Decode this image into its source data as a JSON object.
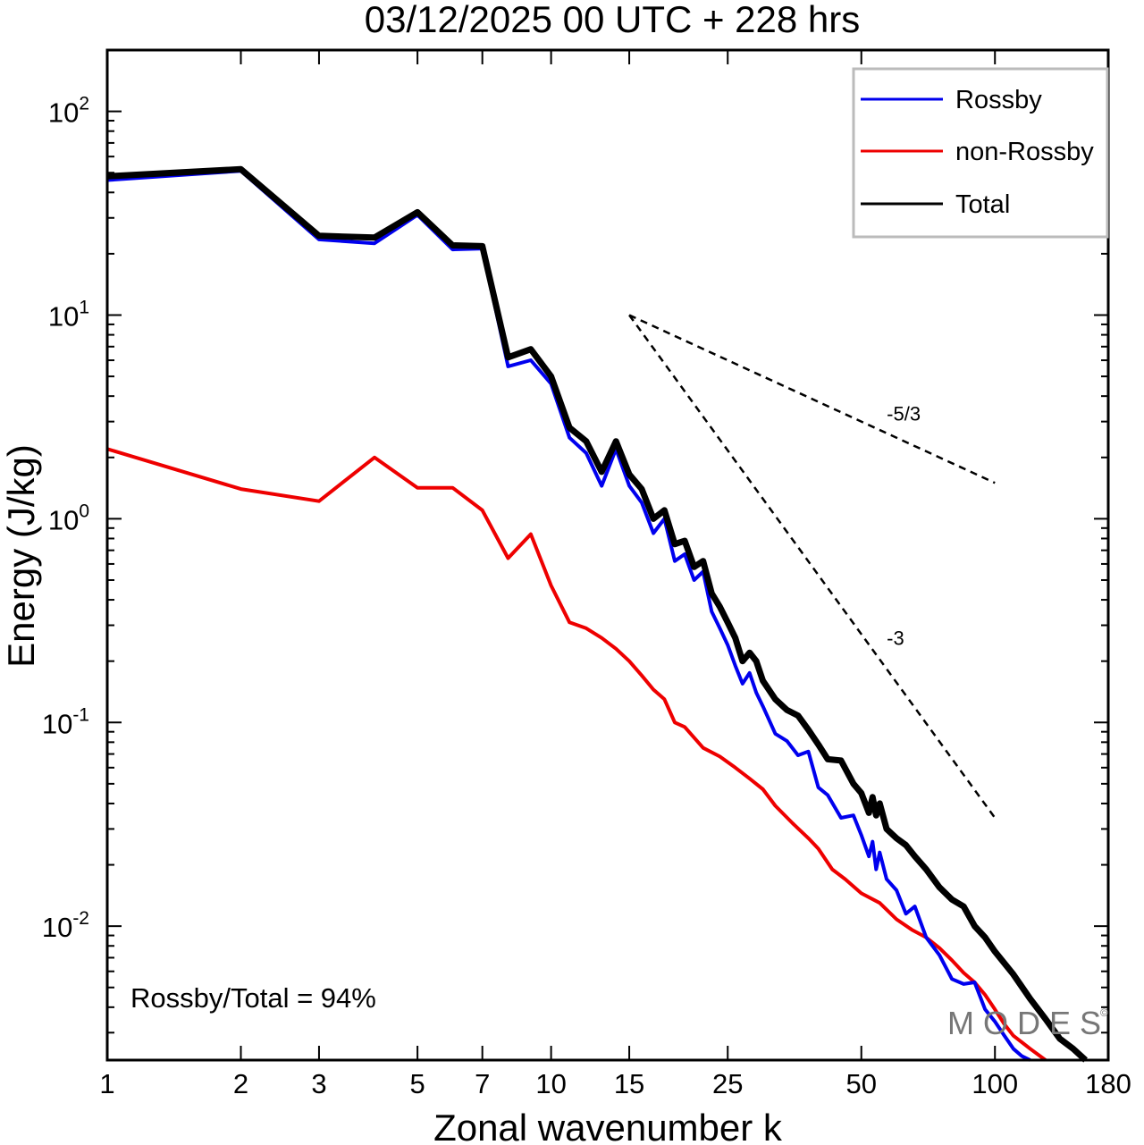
{
  "chart_data": {
    "type": "line",
    "title": "03/12/2025  00 UTC  + 228 hrs",
    "xlabel": "Zonal wavenumber k",
    "ylabel": "Energy (J/kg)",
    "xscale": "log",
    "yscale": "log",
    "xlim": [
      1,
      180
    ],
    "ylim": [
      0.0022,
      200
    ],
    "x_ticks": [
      1,
      2,
      3,
      5,
      7,
      10,
      15,
      25,
      50,
      100,
      180
    ],
    "x_tick_labels": [
      "1",
      "2",
      "3",
      "5",
      "7",
      "10",
      "15",
      "25",
      "50",
      "100",
      "180"
    ],
    "y_ticks": [
      {
        "value": 100,
        "base": "10",
        "exp": "2"
      },
      {
        "value": 10,
        "base": "10",
        "exp": "1"
      },
      {
        "value": 1,
        "base": "10",
        "exp": "0"
      },
      {
        "value": 0.1,
        "base": "10",
        "exp": "-1"
      },
      {
        "value": 0.01,
        "base": "10",
        "exp": "-2"
      }
    ],
    "legend": {
      "position": "top-right",
      "entries": [
        "Rossby",
        "non-Rossby",
        "Total"
      ]
    },
    "series": [
      {
        "name": "Rossby",
        "color": "#0000ee",
        "x": [
          1,
          2,
          3,
          4,
          5,
          6,
          7,
          8,
          9,
          10,
          11,
          12,
          13,
          14,
          15,
          16,
          17,
          18,
          19,
          20,
          21,
          22,
          23,
          24,
          25,
          26,
          27,
          28,
          29,
          30,
          32,
          34,
          36,
          38,
          40,
          42,
          45,
          48,
          50,
          52,
          53,
          54,
          55,
          57,
          60,
          63,
          66,
          70,
          75,
          80,
          85,
          90,
          95,
          100,
          105,
          110,
          115,
          120
        ],
        "values": [
          46,
          51,
          23.5,
          22.5,
          31,
          21,
          21.2,
          5.6,
          6.0,
          4.6,
          2.5,
          2.1,
          1.45,
          2.2,
          1.45,
          1.2,
          0.85,
          1.0,
          0.62,
          0.67,
          0.5,
          0.55,
          0.35,
          0.29,
          0.24,
          0.19,
          0.155,
          0.175,
          0.14,
          0.12,
          0.088,
          0.081,
          0.069,
          0.072,
          0.048,
          0.044,
          0.034,
          0.035,
          0.028,
          0.022,
          0.026,
          0.019,
          0.023,
          0.017,
          0.015,
          0.0115,
          0.0125,
          0.0088,
          0.0072,
          0.0055,
          0.0052,
          0.0053,
          0.0039,
          0.0034,
          0.0029,
          0.0025,
          0.0023,
          0.0022
        ]
      },
      {
        "name": "non-Rossby",
        "color": "#ee0000",
        "x": [
          1,
          2,
          3,
          4,
          5,
          6,
          7,
          8,
          9,
          10,
          11,
          12,
          13,
          14,
          15,
          16,
          17,
          18,
          19,
          20,
          22,
          24,
          26,
          28,
          30,
          32,
          35,
          38,
          40,
          43,
          46,
          50,
          55,
          60,
          65,
          70,
          75,
          80,
          85,
          90,
          95,
          100,
          105,
          110,
          120,
          130
        ],
        "values": [
          2.2,
          1.4,
          1.22,
          2.0,
          1.42,
          1.42,
          1.1,
          0.64,
          0.84,
          0.47,
          0.31,
          0.29,
          0.26,
          0.23,
          0.2,
          0.17,
          0.145,
          0.13,
          0.1,
          0.095,
          0.075,
          0.068,
          0.06,
          0.053,
          0.047,
          0.039,
          0.032,
          0.027,
          0.024,
          0.019,
          0.017,
          0.0145,
          0.013,
          0.0108,
          0.0096,
          0.0088,
          0.0078,
          0.0068,
          0.0059,
          0.0053,
          0.0046,
          0.0039,
          0.0033,
          0.0029,
          0.0025,
          0.0022
        ]
      },
      {
        "name": "Total",
        "color": "#000000",
        "x": [
          1,
          2,
          3,
          4,
          5,
          6,
          7,
          8,
          9,
          10,
          11,
          12,
          13,
          14,
          15,
          16,
          17,
          18,
          19,
          20,
          21,
          22,
          23,
          24,
          25,
          26,
          27,
          28,
          29,
          30,
          32,
          34,
          36,
          38,
          40,
          42,
          45,
          48,
          50,
          52,
          53,
          54,
          55,
          57,
          60,
          63,
          66,
          70,
          75,
          80,
          85,
          90,
          95,
          100,
          110,
          120,
          130,
          140,
          150,
          160
        ],
        "values": [
          48,
          52,
          24.5,
          24,
          32,
          22,
          21.8,
          6.2,
          6.8,
          5.0,
          2.8,
          2.4,
          1.7,
          2.4,
          1.65,
          1.4,
          1.0,
          1.1,
          0.75,
          0.78,
          0.58,
          0.62,
          0.43,
          0.37,
          0.31,
          0.26,
          0.2,
          0.22,
          0.2,
          0.16,
          0.13,
          0.115,
          0.108,
          0.092,
          0.078,
          0.066,
          0.065,
          0.05,
          0.045,
          0.036,
          0.043,
          0.035,
          0.04,
          0.03,
          0.027,
          0.025,
          0.022,
          0.019,
          0.0155,
          0.0135,
          0.0125,
          0.01,
          0.0088,
          0.0075,
          0.0058,
          0.0044,
          0.0035,
          0.0028,
          0.0025,
          0.0022
        ]
      }
    ],
    "reference_slopes": [
      {
        "label": "-5/3",
        "from": [
          15,
          10
        ],
        "to": [
          100,
          1.5
        ]
      },
      {
        "label": "-3",
        "from": [
          15,
          10
        ],
        "to": [
          100,
          0.034
        ]
      }
    ],
    "annotation": "Rossby/Total = 94%",
    "watermark": "MODES",
    "watermark_mark": "©"
  }
}
